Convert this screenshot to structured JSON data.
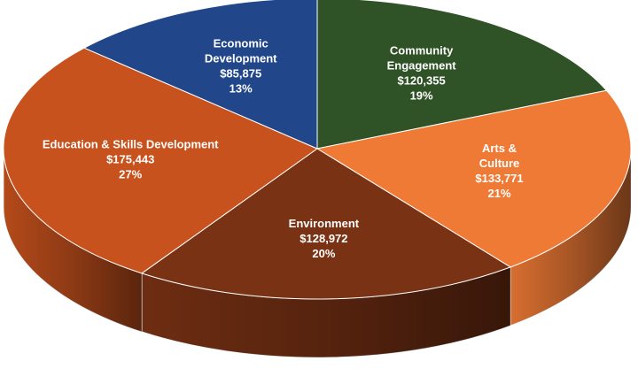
{
  "chart_data": {
    "type": "pie",
    "style": "3d",
    "title": "",
    "slices": [
      {
        "label": "Community Engagement",
        "value_label": "$120,355",
        "percent_label": "19%",
        "value": 120355,
        "color": "#2f5226"
      },
      {
        "label": "Arts & Culture",
        "value_label": "$133,771",
        "percent_label": "21%",
        "value": 133771,
        "color": "#ef7a35"
      },
      {
        "label": "Environment",
        "value_label": "$128,972",
        "percent_label": "20%",
        "value": 128972,
        "color": "#7a3214"
      },
      {
        "label": "Education & Skills Development",
        "value_label": "$175,443",
        "percent_label": "27%",
        "value": 175443,
        "color": "#c8521d"
      },
      {
        "label": "Economic Development",
        "value_label": "$85,875",
        "percent_label": "13%",
        "value": 85875,
        "color": "#21478a"
      }
    ]
  }
}
